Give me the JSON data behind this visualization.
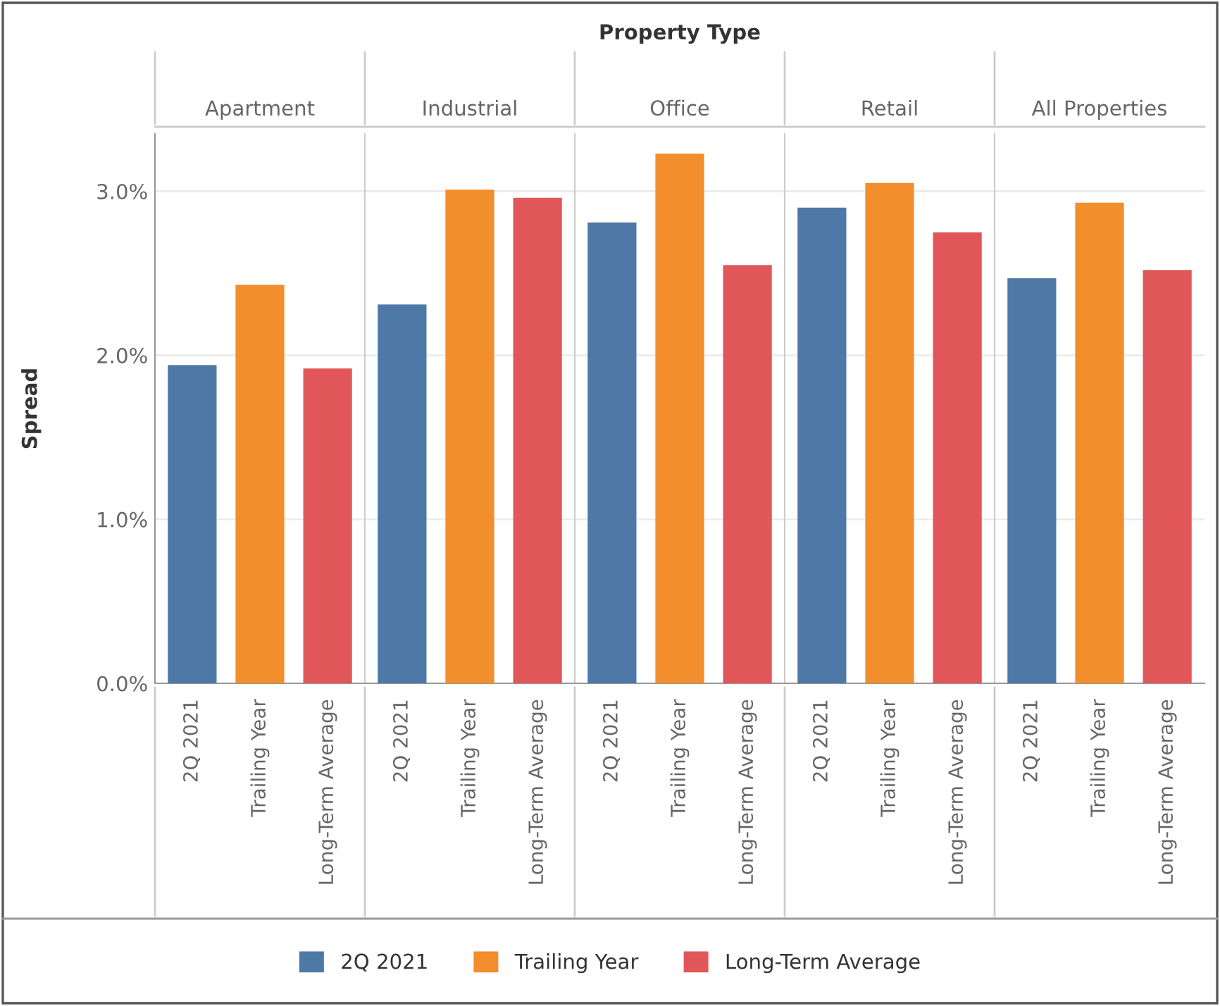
{
  "chart_data": [
    {
      "type": "bar",
      "subtitle": "Apartment",
      "ylabel": "Spread",
      "categories": [
        "2Q 2021",
        "Trailing Year",
        "Long-Term Average"
      ],
      "series": [
        {
          "name": "2Q 2021",
          "color": "#4e79a7",
          "values": [
            1.94,
            null,
            null
          ]
        },
        {
          "name": "Trailing Year",
          "color": "#f28e2b",
          "values": [
            null,
            2.43,
            null
          ]
        },
        {
          "name": "Long-Term Average",
          "color": "#e15759",
          "values": [
            null,
            null,
            1.92
          ]
        }
      ],
      "ylim": [
        0,
        3.35
      ],
      "yticks": [
        {
          "value": 0,
          "label": "0.0%"
        },
        {
          "value": 1,
          "label": "1.0%"
        },
        {
          "value": 2,
          "label": "2.0%"
        },
        {
          "value": 3,
          "label": "3.0%"
        }
      ],
      "grid": "y",
      "legend": "bottom"
    },
    {
      "type": "bar",
      "subtitle": "Industrial",
      "categories": [
        "2Q 2021",
        "Trailing Year",
        "Long-Term Average"
      ],
      "series": [
        {
          "color": "#4e79a7",
          "values": [
            2.31,
            null,
            null
          ]
        },
        {
          "color": "#f28e2b",
          "values": [
            null,
            3.01,
            null
          ]
        },
        {
          "color": "#e15759",
          "values": [
            null,
            null,
            2.96
          ]
        }
      ],
      "ylim": [
        0,
        3.35
      ],
      "yticks": [
        0,
        1,
        2,
        3
      ],
      "grid": "y",
      "tick_labels": "x"
    },
    {
      "type": "bar",
      "title": "Property Type",
      "subtitle": "Office",
      "categories": [
        "2Q 2021",
        "Trailing Year",
        "Long-Term Average"
      ],
      "series": [
        {
          "color": "#4e79a7",
          "values": [
            2.81,
            null,
            null
          ]
        },
        {
          "color": "#f28e2b",
          "values": [
            null,
            3.23,
            null
          ]
        },
        {
          "color": "#e15759",
          "values": [
            null,
            null,
            2.55
          ]
        }
      ],
      "ylim": [
        0,
        3.35
      ],
      "yticks": [
        0,
        1,
        2,
        3
      ],
      "grid": "y",
      "tick_labels": "x"
    },
    {
      "type": "bar",
      "subtitle": "Retail",
      "categories": [
        "2Q 2021",
        "Trailing Year",
        "Long-Term Average"
      ],
      "series": [
        {
          "color": "#4e79a7",
          "values": [
            2.9,
            null,
            null
          ]
        },
        {
          "color": "#f28e2b",
          "values": [
            null,
            3.05,
            null
          ]
        },
        {
          "color": "#e15759",
          "values": [
            null,
            null,
            2.75
          ]
        }
      ],
      "ylim": [
        0,
        3.35
      ],
      "yticks": [
        0,
        1,
        2,
        3
      ],
      "grid": "y",
      "tick_labels": "x"
    },
    {
      "type": "bar",
      "subtitle": "All Properties",
      "categories": [
        "2Q 2021",
        "Trailing Year",
        "Long-Term Average"
      ],
      "series": [
        {
          "color": "#4e79a7",
          "values": [
            2.47,
            null,
            null
          ]
        },
        {
          "color": "#f28e2b",
          "values": [
            null,
            2.93,
            null
          ]
        },
        {
          "color": "#e15759",
          "values": [
            null,
            null,
            2.52
          ]
        }
      ],
      "ylim": [
        0,
        3.35
      ],
      "yticks": [
        0,
        1,
        2,
        3
      ],
      "grid": "y",
      "tick_labels": "x"
    }
  ]
}
